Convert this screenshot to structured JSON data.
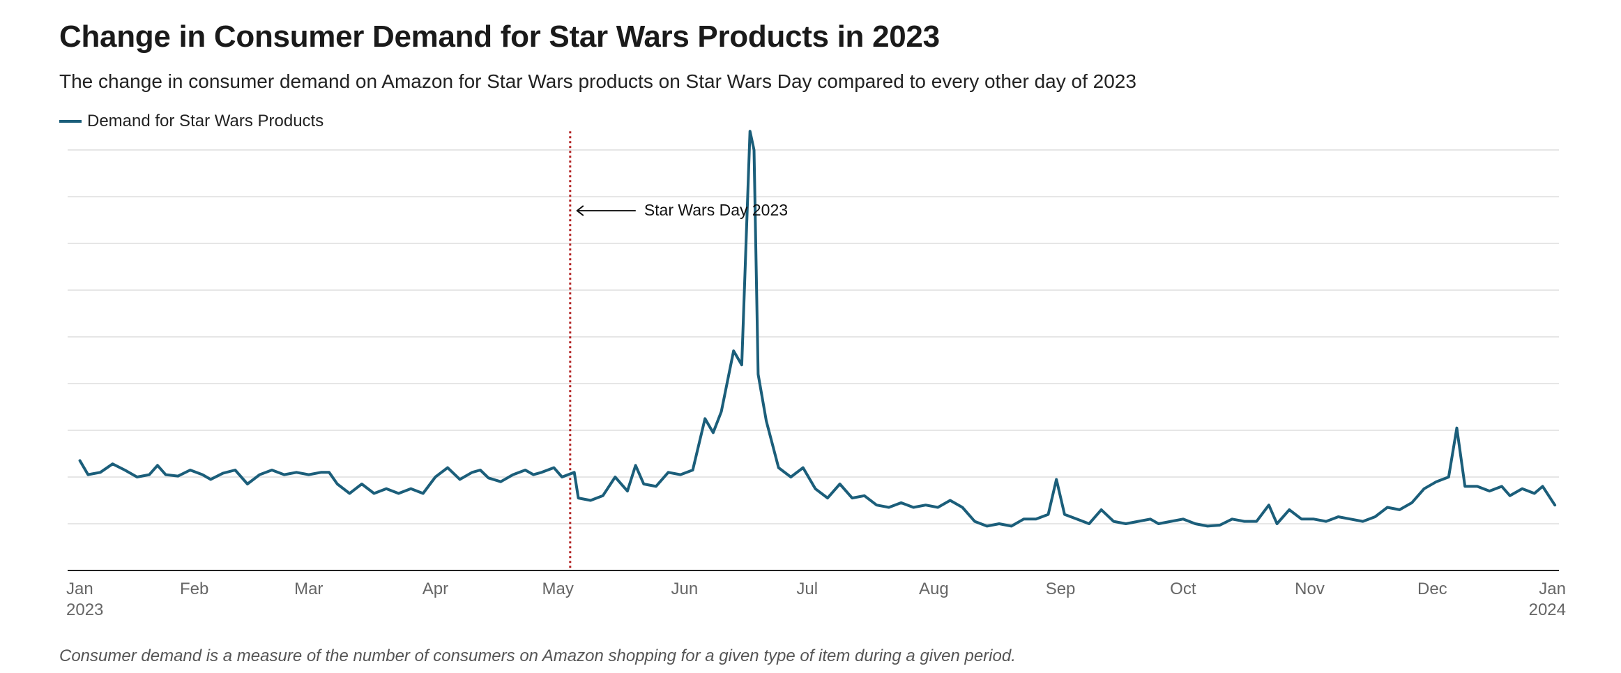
{
  "chart_data": {
    "type": "line",
    "title": "Change in Consumer Demand for Star Wars Products in 2023",
    "subtitle": "The change in consumer demand on Amazon for Star Wars products on Star Wars Day compared to every other day of 2023",
    "xlabel": "",
    "ylabel": "",
    "xlim": [
      "2023-01-01",
      "2024-01-01"
    ],
    "ylim": [
      0,
      9
    ],
    "y_tick_labels_shown": false,
    "grid": "horizontal",
    "legend": "top-left",
    "x_ticks": [
      {
        "date": "2023-01-01",
        "label": "Jan",
        "sublabel": "2023"
      },
      {
        "date": "2023-02-01",
        "label": "Feb"
      },
      {
        "date": "2023-03-01",
        "label": "Mar"
      },
      {
        "date": "2023-04-01",
        "label": "Apr"
      },
      {
        "date": "2023-05-01",
        "label": "May"
      },
      {
        "date": "2023-06-01",
        "label": "Jun"
      },
      {
        "date": "2023-07-01",
        "label": "Jul"
      },
      {
        "date": "2023-08-01",
        "label": "Aug"
      },
      {
        "date": "2023-09-01",
        "label": "Sep"
      },
      {
        "date": "2023-10-01",
        "label": "Oct"
      },
      {
        "date": "2023-11-01",
        "label": "Nov"
      },
      {
        "date": "2023-12-01",
        "label": "Dec"
      },
      {
        "date": "2024-01-01",
        "label": "Jan",
        "sublabel": "2024"
      }
    ],
    "series": [
      {
        "name": "Demand for Star Wars Products",
        "color": "#1b5e7a",
        "points": [
          [
            "2023-01-04",
            2.35
          ],
          [
            "2023-01-06",
            2.05
          ],
          [
            "2023-01-09",
            2.1
          ],
          [
            "2023-01-12",
            2.28
          ],
          [
            "2023-01-15",
            2.15
          ],
          [
            "2023-01-18",
            2.0
          ],
          [
            "2023-01-21",
            2.05
          ],
          [
            "2023-01-23",
            2.25
          ],
          [
            "2023-01-25",
            2.05
          ],
          [
            "2023-01-28",
            2.02
          ],
          [
            "2023-01-31",
            2.15
          ],
          [
            "2023-02-03",
            2.05
          ],
          [
            "2023-02-05",
            1.95
          ],
          [
            "2023-02-08",
            2.08
          ],
          [
            "2023-02-11",
            2.15
          ],
          [
            "2023-02-14",
            1.85
          ],
          [
            "2023-02-17",
            2.05
          ],
          [
            "2023-02-20",
            2.15
          ],
          [
            "2023-02-23",
            2.05
          ],
          [
            "2023-02-26",
            2.1
          ],
          [
            "2023-03-01",
            2.05
          ],
          [
            "2023-03-04",
            2.1
          ],
          [
            "2023-03-06",
            2.1
          ],
          [
            "2023-03-08",
            1.85
          ],
          [
            "2023-03-11",
            1.65
          ],
          [
            "2023-03-14",
            1.85
          ],
          [
            "2023-03-17",
            1.65
          ],
          [
            "2023-03-20",
            1.75
          ],
          [
            "2023-03-23",
            1.65
          ],
          [
            "2023-03-26",
            1.75
          ],
          [
            "2023-03-29",
            1.65
          ],
          [
            "2023-04-01",
            2.0
          ],
          [
            "2023-04-04",
            2.2
          ],
          [
            "2023-04-07",
            1.95
          ],
          [
            "2023-04-10",
            2.1
          ],
          [
            "2023-04-12",
            2.15
          ],
          [
            "2023-04-14",
            1.98
          ],
          [
            "2023-04-17",
            1.9
          ],
          [
            "2023-04-20",
            2.05
          ],
          [
            "2023-04-23",
            2.15
          ],
          [
            "2023-04-25",
            2.05
          ],
          [
            "2023-04-27",
            2.1
          ],
          [
            "2023-04-30",
            2.2
          ],
          [
            "2023-05-02",
            2.0
          ],
          [
            "2023-05-05",
            2.1
          ],
          [
            "2023-05-06",
            1.55
          ],
          [
            "2023-05-09",
            1.5
          ],
          [
            "2023-05-12",
            1.6
          ],
          [
            "2023-05-15",
            2.0
          ],
          [
            "2023-05-18",
            1.7
          ],
          [
            "2023-05-20",
            2.25
          ],
          [
            "2023-05-22",
            1.85
          ],
          [
            "2023-05-25",
            1.8
          ],
          [
            "2023-05-28",
            2.1
          ],
          [
            "2023-05-31",
            2.05
          ],
          [
            "2023-06-03",
            2.15
          ],
          [
            "2023-06-06",
            3.25
          ],
          [
            "2023-06-08",
            2.95
          ],
          [
            "2023-06-10",
            3.4
          ],
          [
            "2023-06-13",
            4.7
          ],
          [
            "2023-06-15",
            4.4
          ],
          [
            "2023-06-17",
            9.4
          ],
          [
            "2023-06-18",
            9.0
          ],
          [
            "2023-06-19",
            4.2
          ],
          [
            "2023-06-21",
            3.2
          ],
          [
            "2023-06-24",
            2.2
          ],
          [
            "2023-06-27",
            2.0
          ],
          [
            "2023-06-30",
            2.2
          ],
          [
            "2023-07-03",
            1.75
          ],
          [
            "2023-07-06",
            1.55
          ],
          [
            "2023-07-09",
            1.85
          ],
          [
            "2023-07-12",
            1.55
          ],
          [
            "2023-07-15",
            1.6
          ],
          [
            "2023-07-18",
            1.4
          ],
          [
            "2023-07-21",
            1.35
          ],
          [
            "2023-07-24",
            1.45
          ],
          [
            "2023-07-27",
            1.35
          ],
          [
            "2023-07-30",
            1.4
          ],
          [
            "2023-08-02",
            1.35
          ],
          [
            "2023-08-05",
            1.5
          ],
          [
            "2023-08-08",
            1.35
          ],
          [
            "2023-08-11",
            1.05
          ],
          [
            "2023-08-14",
            0.95
          ],
          [
            "2023-08-17",
            1.0
          ],
          [
            "2023-08-20",
            0.95
          ],
          [
            "2023-08-23",
            1.1
          ],
          [
            "2023-08-26",
            1.1
          ],
          [
            "2023-08-29",
            1.2
          ],
          [
            "2023-08-31",
            1.95
          ],
          [
            "2023-09-02",
            1.2
          ],
          [
            "2023-09-05",
            1.1
          ],
          [
            "2023-09-08",
            1.0
          ],
          [
            "2023-09-11",
            1.3
          ],
          [
            "2023-09-14",
            1.05
          ],
          [
            "2023-09-17",
            1.0
          ],
          [
            "2023-09-20",
            1.05
          ],
          [
            "2023-09-23",
            1.1
          ],
          [
            "2023-09-25",
            1.0
          ],
          [
            "2023-09-28",
            1.05
          ],
          [
            "2023-10-01",
            1.1
          ],
          [
            "2023-10-04",
            1.0
          ],
          [
            "2023-10-07",
            0.95
          ],
          [
            "2023-10-10",
            0.97
          ],
          [
            "2023-10-13",
            1.1
          ],
          [
            "2023-10-16",
            1.05
          ],
          [
            "2023-10-19",
            1.05
          ],
          [
            "2023-10-22",
            1.4
          ],
          [
            "2023-10-24",
            1.0
          ],
          [
            "2023-10-27",
            1.3
          ],
          [
            "2023-10-30",
            1.1
          ],
          [
            "2023-11-02",
            1.1
          ],
          [
            "2023-11-05",
            1.05
          ],
          [
            "2023-11-08",
            1.15
          ],
          [
            "2023-11-11",
            1.1
          ],
          [
            "2023-11-14",
            1.05
          ],
          [
            "2023-11-17",
            1.15
          ],
          [
            "2023-11-20",
            1.35
          ],
          [
            "2023-11-23",
            1.3
          ],
          [
            "2023-11-26",
            1.45
          ],
          [
            "2023-11-29",
            1.75
          ],
          [
            "2023-12-02",
            1.9
          ],
          [
            "2023-12-05",
            2.0
          ],
          [
            "2023-12-07",
            3.05
          ],
          [
            "2023-12-09",
            1.8
          ],
          [
            "2023-12-12",
            1.8
          ],
          [
            "2023-12-15",
            1.7
          ],
          [
            "2023-12-18",
            1.8
          ],
          [
            "2023-12-20",
            1.6
          ],
          [
            "2023-12-23",
            1.75
          ],
          [
            "2023-12-26",
            1.65
          ],
          [
            "2023-12-28",
            1.8
          ],
          [
            "2023-12-31",
            1.4
          ]
        ]
      }
    ],
    "reference_line": {
      "date": "2023-05-04",
      "color": "#b22222",
      "style": "dotted"
    },
    "annotations": [
      {
        "text": "Star Wars Day 2023",
        "target_date": "2023-05-04",
        "y": 7.7,
        "arrow": "left"
      }
    ],
    "footnote": "Consumer demand is a measure of the number of consumers on Amazon shopping for a given type of item during a given period."
  }
}
